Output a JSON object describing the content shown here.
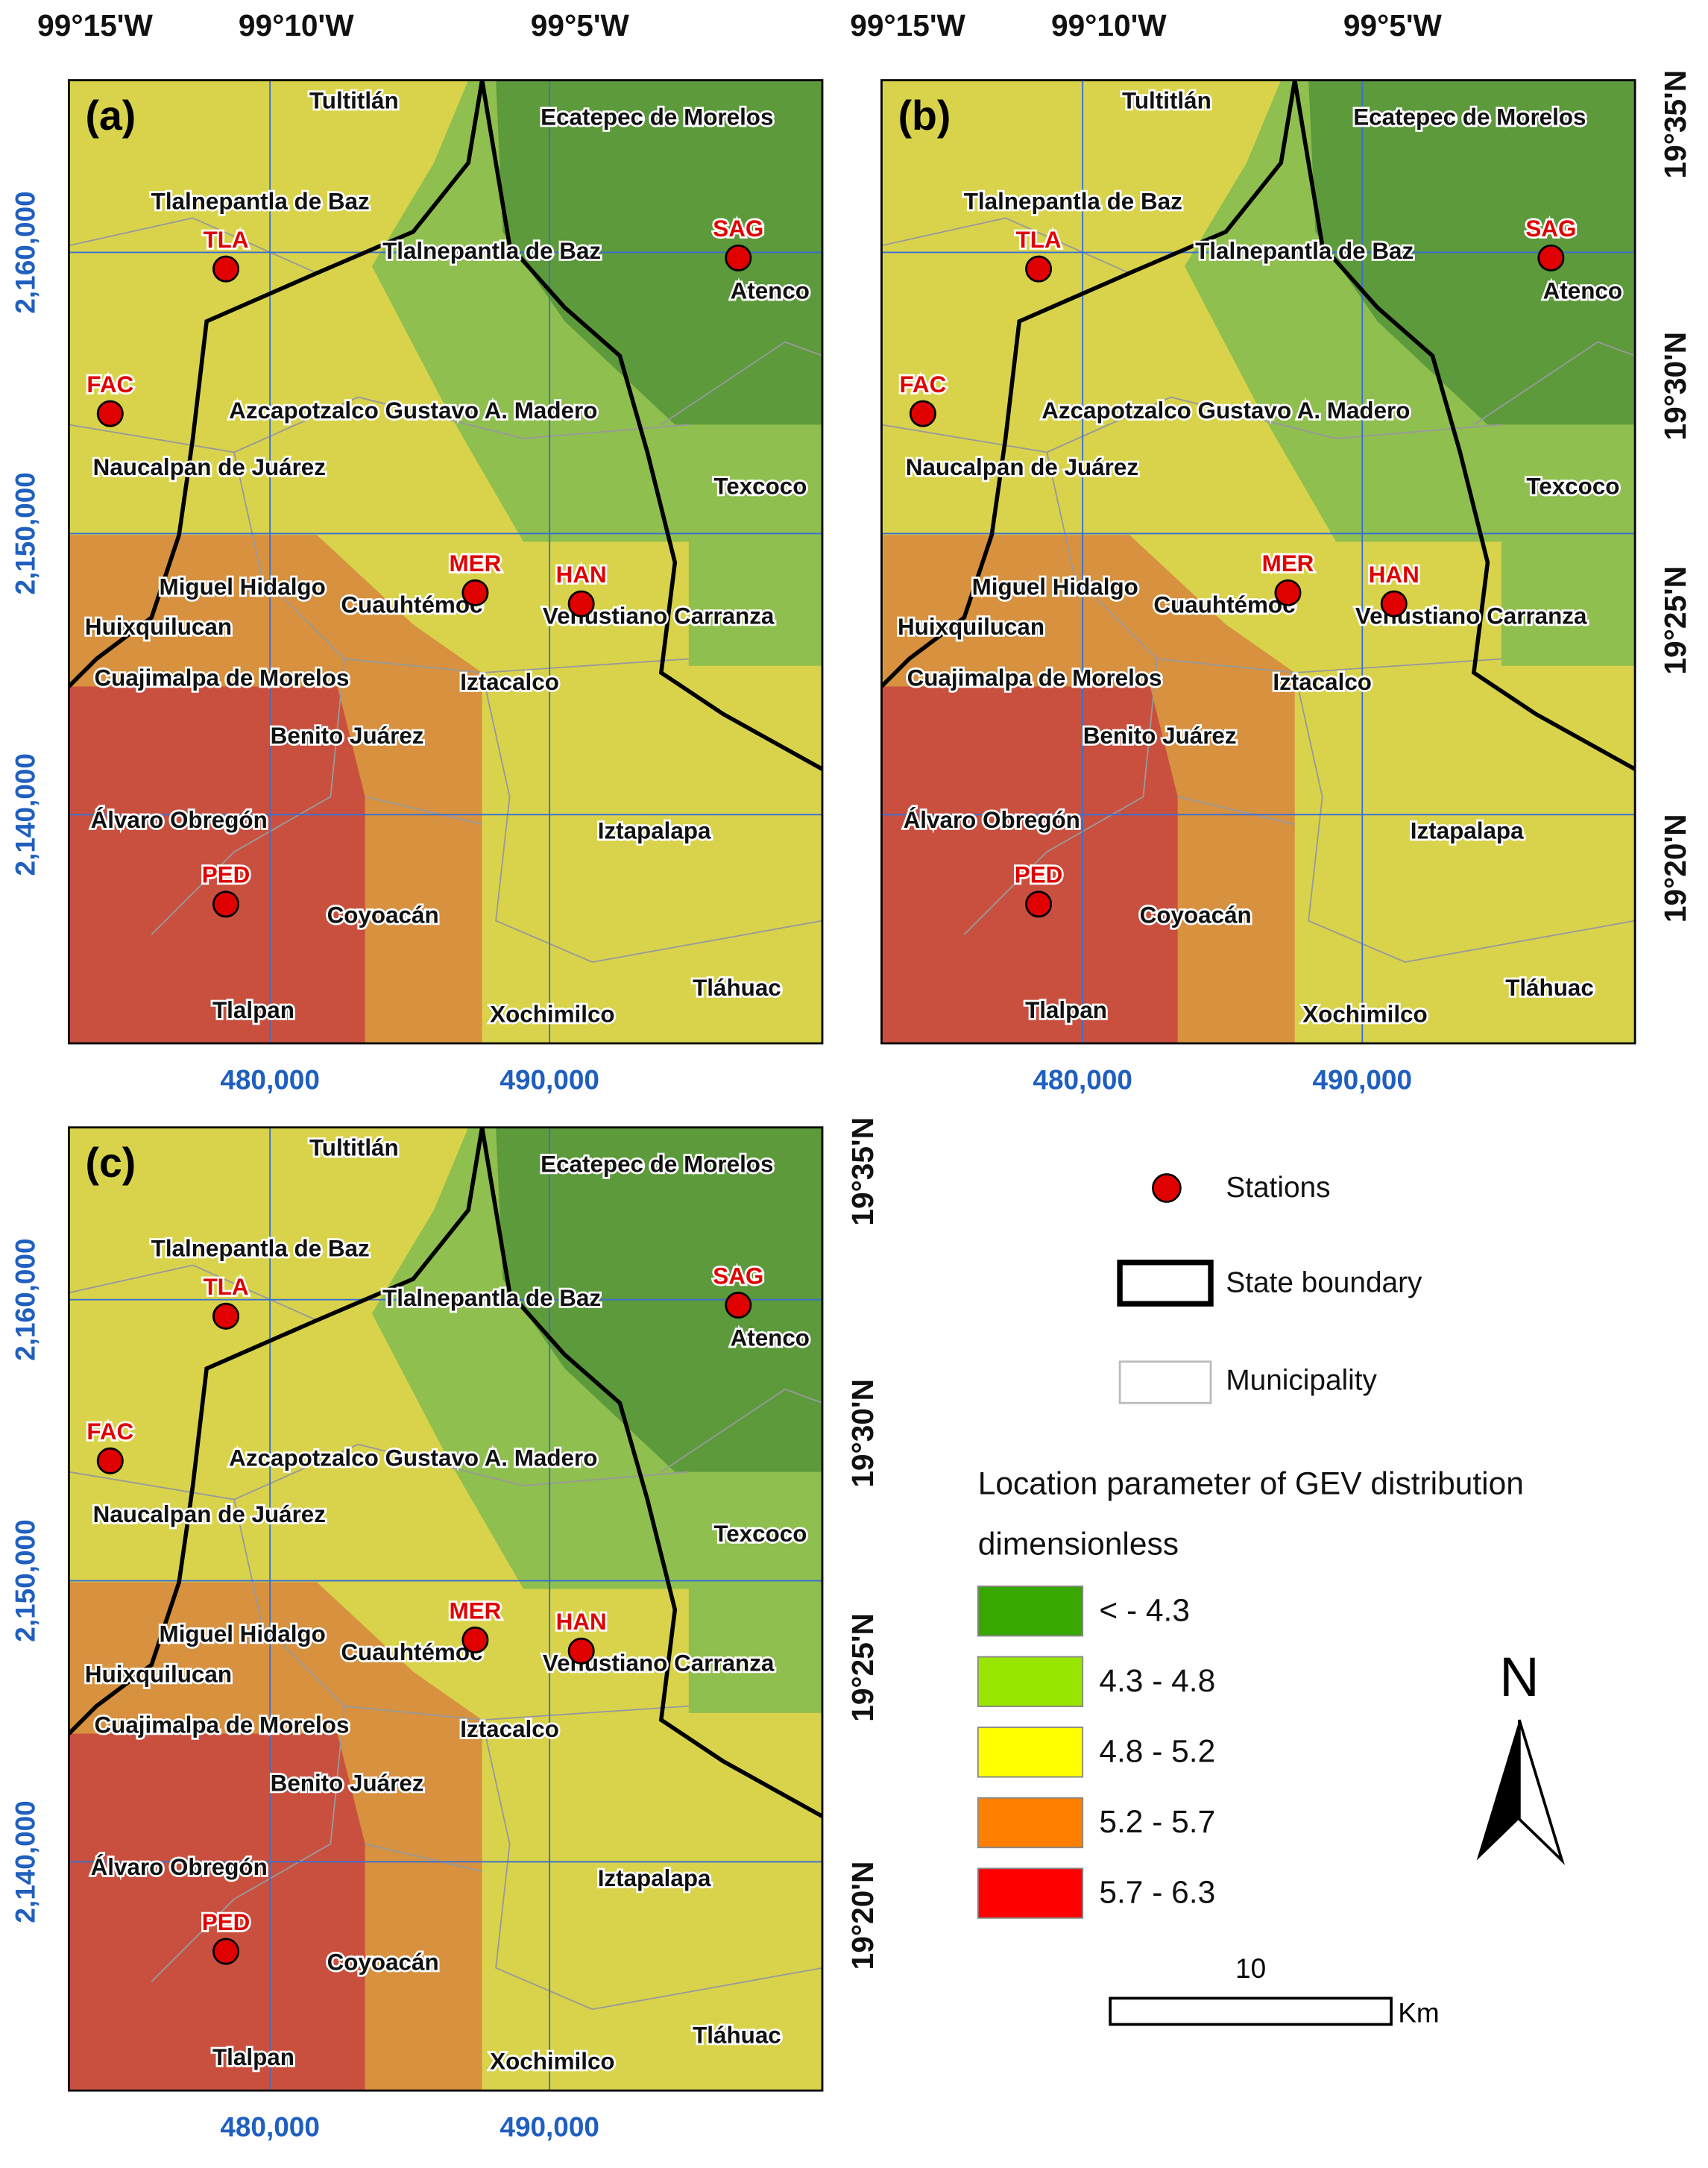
{
  "panels": [
    {
      "label": "(a)",
      "top": [
        "99°15'W",
        "99°10'W",
        "99°5'W"
      ],
      "left": [
        "2,160,000",
        "2,150,000",
        "2,140,000"
      ],
      "bottom": [
        "480,000",
        "490,000"
      ]
    },
    {
      "label": "(b)",
      "top": [
        "99°15'W",
        "99°10'W",
        "99°5'W"
      ],
      "right": [
        "19°35'N",
        "19°30'N",
        "19°25'N",
        "19°20'N"
      ],
      "bottom": [
        "480,000",
        "490,000"
      ]
    },
    {
      "label": "(c)",
      "left": [
        "2,160,000",
        "2,150,000",
        "2,140,000"
      ],
      "right": [
        "19°35'N",
        "19°30'N",
        "19°25'N",
        "19°20'N"
      ],
      "bottom": [
        "480,000",
        "490,000"
      ]
    }
  ],
  "municipalities": [
    "Tultitlán",
    "Ecatepec de Morelos",
    "Tlalnepantla de Baz",
    "Tlalnepantla de Baz",
    "Atenco",
    "Azcapotzalco Gustavo A. Madero",
    "Naucalpan de Juárez",
    "Texcoco",
    "Miguel Hidalgo",
    "Cuauhtémoc",
    "Venustiano Carranza",
    "Huixquilucan",
    "Cuajimalpa de Morelos",
    "Iztacalco",
    "Benito Juárez",
    "Álvaro Obregón",
    "Iztapalapa",
    "Coyoacán",
    "Tláhuac",
    "Tlalpan",
    "Xochimilco"
  ],
  "stations": [
    "TLA",
    "SAG",
    "FAC",
    "MER",
    "HAN",
    "PED"
  ],
  "legend": {
    "stations": "Stations",
    "state_boundary": "State boundary",
    "municipality": "Municipality",
    "title": "Location parameter of GEV distribution",
    "subtitle": "dimensionless",
    "classes": [
      {
        "label": "< - 4.3",
        "color": "#38a800"
      },
      {
        "label": "4.3 - 4.8",
        "color": "#98e600"
      },
      {
        "label": "4.8 - 5.2",
        "color": "#ffff00"
      },
      {
        "label": "5.2 - 5.7",
        "color": "#ff8000"
      },
      {
        "label": "5.7 - 6.3",
        "color": "#ff0000"
      }
    ]
  },
  "north": "N",
  "scale": {
    "distance": "10",
    "unit": "Km"
  }
}
